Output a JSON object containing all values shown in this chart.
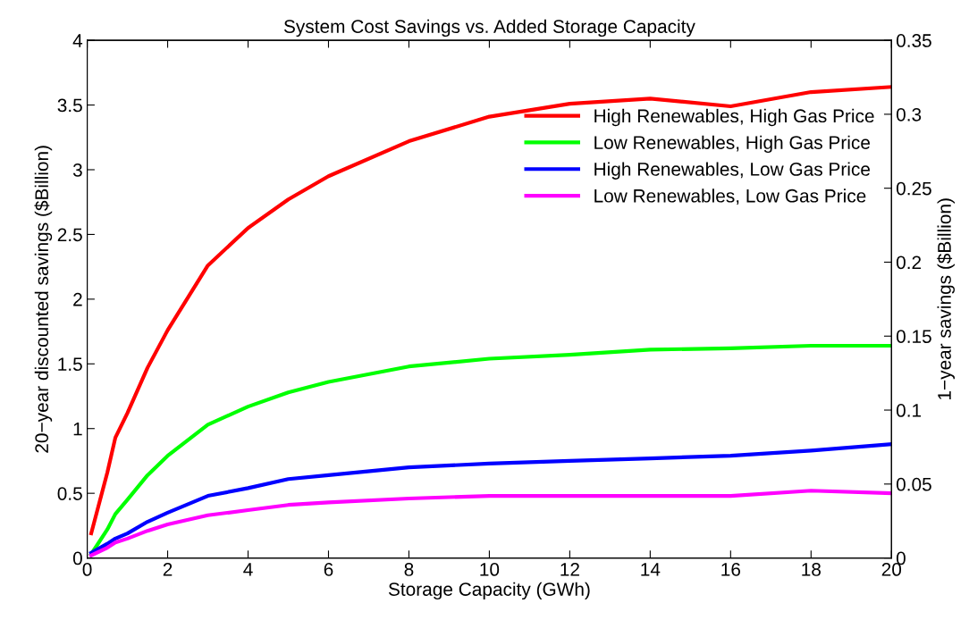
{
  "chart_data": {
    "type": "line",
    "title": "System Cost Savings vs. Added Storage Capacity",
    "xlabel": "Storage Capacity (GWh)",
    "ylabel": "20−year discounted savings ($Billion)",
    "y2label": "1−year savings ($Billion)",
    "x": [
      0.1,
      0.5,
      0.7,
      1,
      1.5,
      2,
      3,
      4,
      5,
      6,
      8,
      10,
      12,
      14,
      16,
      18,
      20
    ],
    "series": [
      {
        "name": "High Renewables, High Gas Price",
        "color": "#ff0000",
        "values": [
          0.19,
          0.66,
          0.93,
          1.12,
          1.47,
          1.76,
          2.26,
          2.55,
          2.77,
          2.95,
          3.22,
          3.41,
          3.51,
          3.55,
          3.49,
          3.6,
          3.64
        ]
      },
      {
        "name": "Low Renewables, High Gas Price",
        "color": "#00ff00",
        "values": [
          0.03,
          0.22,
          0.34,
          0.45,
          0.64,
          0.79,
          1.03,
          1.17,
          1.28,
          1.36,
          1.48,
          1.54,
          1.57,
          1.61,
          1.62,
          1.64,
          1.64
        ]
      },
      {
        "name": "High Renewables, Low Gas Price",
        "color": "#0000ff",
        "values": [
          0.04,
          0.11,
          0.15,
          0.19,
          0.28,
          0.35,
          0.48,
          0.54,
          0.61,
          0.64,
          0.7,
          0.73,
          0.75,
          0.77,
          0.79,
          0.83,
          0.88
        ]
      },
      {
        "name": "Low Renewables, Low Gas Price",
        "color": "#ff00ff",
        "values": [
          0.02,
          0.08,
          0.12,
          0.15,
          0.21,
          0.26,
          0.33,
          0.37,
          0.41,
          0.43,
          0.46,
          0.48,
          0.48,
          0.48,
          0.48,
          0.52,
          0.5
        ]
      }
    ],
    "xlim": [
      0,
      20
    ],
    "xticks": [
      0,
      2,
      4,
      6,
      8,
      10,
      12,
      14,
      16,
      18,
      20
    ],
    "ylim": [
      0,
      4
    ],
    "yticks": [
      0,
      0.5,
      1,
      1.5,
      2,
      2.5,
      3,
      3.5,
      4
    ],
    "y2lim": [
      0,
      0.35
    ],
    "y2ticks": [
      0,
      0.05,
      0.1,
      0.15,
      0.2,
      0.25,
      0.3,
      0.35
    ],
    "legend": "top right",
    "grid": false,
    "line_style": "solid"
  }
}
